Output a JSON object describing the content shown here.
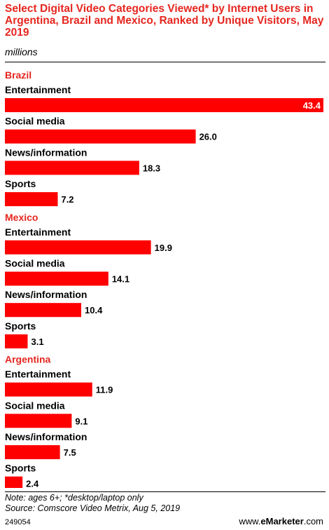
{
  "title": "Select Digital Video Categories Viewed* by Internet Users in Argentina, Brazil and Mexico, Ranked by Unique Visitors, May 2019",
  "subtitle": "millions",
  "colors": {
    "bar": "#ff0000",
    "group_label": "#e6261f",
    "text": "#000000",
    "value_inside": "#ffffff"
  },
  "chart_data": {
    "type": "bar",
    "orientation": "horizontal",
    "xlim": [
      0,
      43.4
    ],
    "grid": false,
    "groups": [
      {
        "name": "Brazil",
        "categories": [
          "Entertainment",
          "Social media",
          "News/information",
          "Sports"
        ],
        "values": [
          43.4,
          26.0,
          18.3,
          7.2
        ],
        "labels": [
          "43.4",
          "26.0",
          "18.3",
          "7.2"
        ]
      },
      {
        "name": "Mexico",
        "categories": [
          "Entertainment",
          "Social media",
          "News/information",
          "Sports"
        ],
        "values": [
          19.9,
          14.1,
          10.4,
          3.1
        ],
        "labels": [
          "19.9",
          "14.1",
          "10.4",
          "3.1"
        ]
      },
      {
        "name": "Argentina",
        "categories": [
          "Entertainment",
          "Social media",
          "News/information",
          "Sports"
        ],
        "values": [
          11.9,
          9.1,
          7.5,
          2.4
        ],
        "labels": [
          "11.9",
          "9.1",
          "7.5",
          "2.4"
        ]
      }
    ]
  },
  "footer": {
    "note": "Note: ages 6+; *desktop/laptop only",
    "source": "Source: Comscore Video Metrix, Aug 5, 2019",
    "chart_id": "249054",
    "brand_prefix": "www.",
    "brand_e": "e",
    "brand_name": "Marketer",
    "brand_suffix": ".com"
  }
}
